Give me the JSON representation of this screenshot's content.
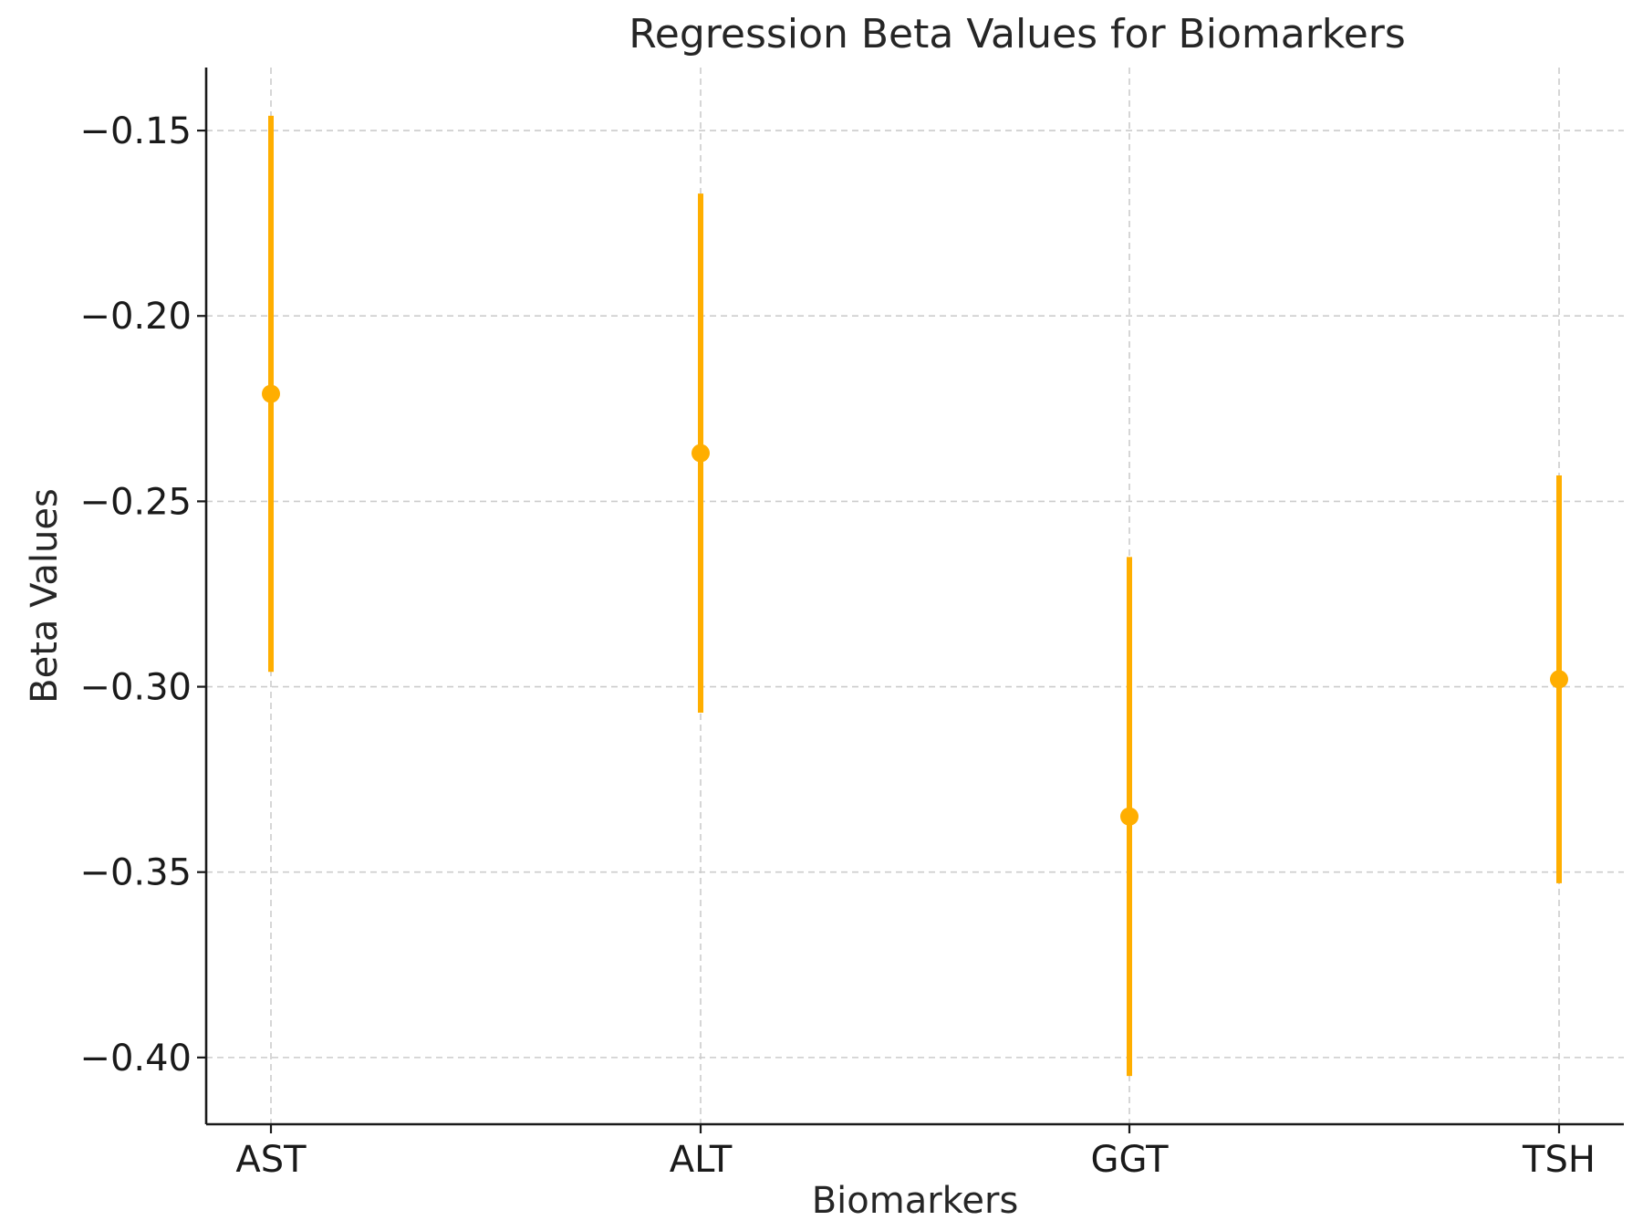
{
  "chart_data": {
    "type": "scatter",
    "title": "Regression Beta Values for Biomarkers",
    "xlabel": "Biomarkers",
    "ylabel": "Beta Values",
    "categories": [
      "AST",
      "ALT",
      "GGT",
      "TSH"
    ],
    "series": [
      {
        "values": [
          -0.221,
          -0.237,
          -0.335,
          -0.298
        ],
        "error_low": [
          -0.296,
          -0.307,
          -0.405,
          -0.353
        ],
        "error_high": [
          -0.146,
          -0.167,
          -0.265,
          -0.243
        ]
      }
    ],
    "ylim": [
      -0.418,
      -0.133
    ],
    "y_ticks": [
      -0.15,
      -0.2,
      -0.25,
      -0.3,
      -0.35,
      -0.4
    ],
    "y_tick_labels": [
      "−0.15",
      "−0.20",
      "−0.25",
      "−0.30",
      "−0.35",
      "−0.40"
    ],
    "grid": true,
    "legend": "none",
    "colors": {
      "series": "#FFAE00",
      "grid": "#cccccc",
      "axis": "#1a1a1a",
      "text": "#262626"
    }
  }
}
